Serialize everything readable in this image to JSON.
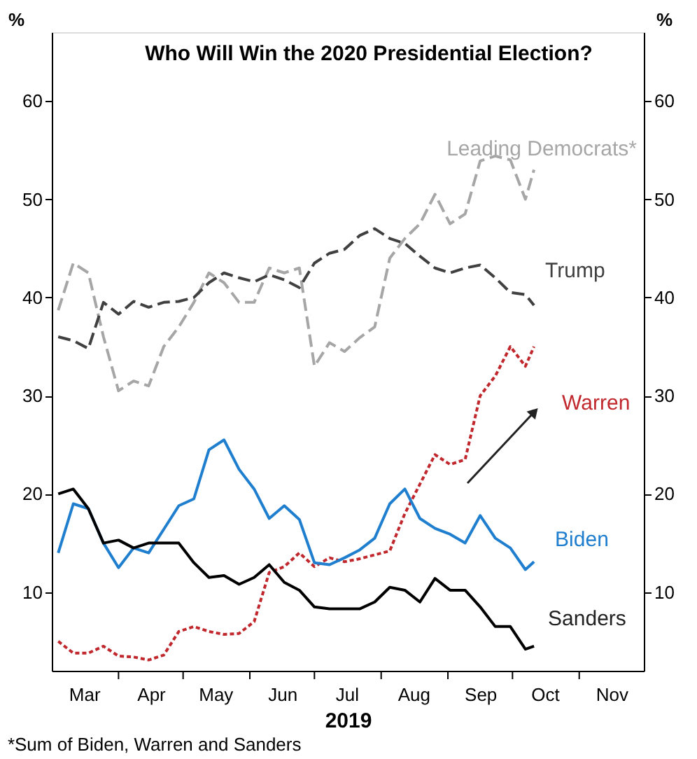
{
  "chart_data": {
    "type": "line",
    "title": "Who Will Win the 2020 Presidential Election?",
    "xlabel": "2019",
    "ylabel": "%",
    "y2label": "%",
    "annotations": [
      "*Sum of Biden, Warren and Sanders"
    ],
    "x": [
      "2019-03-04",
      "2019-03-11",
      "2019-03-18",
      "2019-03-25",
      "2019-04-01",
      "2019-04-08",
      "2019-04-15",
      "2019-04-22",
      "2019-04-29",
      "2019-05-06",
      "2019-05-13",
      "2019-05-20",
      "2019-05-27",
      "2019-06-03",
      "2019-06-10",
      "2019-06-17",
      "2019-06-24",
      "2019-07-01",
      "2019-07-08",
      "2019-07-15",
      "2019-07-22",
      "2019-07-29",
      "2019-08-05",
      "2019-08-12",
      "2019-08-19",
      "2019-08-26",
      "2019-09-02",
      "2019-09-09",
      "2019-09-16",
      "2019-09-23",
      "2019-09-30",
      "2019-10-07",
      "2019-10-11"
    ],
    "series": [
      {
        "name": "Leading Democrats*",
        "color": "#a6a6a6",
        "line_style": "dashed",
        "values": [
          38.7,
          43.5,
          42.5,
          36,
          30.5,
          31.5,
          31,
          35,
          37,
          39.5,
          42.5,
          41.5,
          39.5,
          39.5,
          43,
          42.5,
          43,
          33,
          35.4,
          34.5,
          35.9,
          37,
          44,
          46,
          47.5,
          50.5,
          47.5,
          48.5,
          53.9,
          54.4,
          54,
          50,
          53
        ]
      },
      {
        "name": "Trump",
        "color": "#404040",
        "line_style": "dashed",
        "values": [
          36,
          35.6,
          34.8,
          39.5,
          38.3,
          39.6,
          39,
          39.5,
          39.6,
          40,
          41.5,
          42.5,
          42,
          41.6,
          42.3,
          41.8,
          41,
          43.5,
          44.5,
          44.9,
          46.3,
          47,
          46,
          45.5,
          44.2,
          43,
          42.5,
          43,
          43.3,
          42,
          40.5,
          40.3,
          39.2
        ]
      },
      {
        "name": "Warren",
        "color": "#c0282d",
        "line_style": "dotted",
        "values": [
          5,
          3.8,
          3.8,
          4.5,
          3.5,
          3.4,
          3.1,
          3.6,
          6,
          6.5,
          6,
          5.7,
          5.8,
          7,
          12,
          12.6,
          14,
          12.6,
          13.5,
          13.1,
          13.4,
          13.8,
          14.2,
          18,
          21,
          24,
          23,
          23.5,
          30,
          32,
          35,
          33,
          35
        ]
      },
      {
        "name": "Biden",
        "color": "#1f7fce",
        "line_style": "solid",
        "values": [
          14,
          19,
          18.5,
          15,
          12.5,
          14.5,
          14,
          16.4,
          18.8,
          19.5,
          24.5,
          25.5,
          22.5,
          20.5,
          17.5,
          18.8,
          17.4,
          13,
          12.8,
          13.5,
          14.3,
          15.5,
          19,
          20.5,
          17.5,
          16.5,
          15.9,
          15,
          17.8,
          15.5,
          14.5,
          12.3,
          13.1
        ]
      },
      {
        "name": "Sanders",
        "color": "#000000",
        "line_style": "solid",
        "values": [
          20,
          20.5,
          18.5,
          15,
          15.3,
          14.5,
          15,
          15,
          15,
          13,
          11.5,
          11.7,
          10.8,
          11.5,
          12.8,
          11,
          10.2,
          8.5,
          8.3,
          8.3,
          8.3,
          9,
          10.5,
          10.2,
          9,
          11.4,
          10.2,
          10.2,
          8.5,
          6.5,
          6.5,
          4.2,
          4.5
        ]
      }
    ],
    "xlim": [
      "2019-03-01",
      "2019-12-01"
    ],
    "xticks": [
      {
        "value": "2019-04-01",
        "label": null
      },
      {
        "value": "2019-05-01",
        "label": null
      },
      {
        "value": "2019-06-01",
        "label": null
      },
      {
        "value": "2019-07-01",
        "label": null
      },
      {
        "value": "2019-08-01",
        "label": null
      },
      {
        "value": "2019-09-01",
        "label": null
      },
      {
        "value": "2019-10-01",
        "label": null
      },
      {
        "value": "2019-11-01",
        "label": null
      },
      {
        "value": "2019-03-16",
        "label": "Mar"
      },
      {
        "value": "2019-04-16",
        "label": "Apr"
      },
      {
        "value": "2019-05-16",
        "label": "May"
      },
      {
        "value": "2019-06-16",
        "label": "Jun"
      },
      {
        "value": "2019-07-16",
        "label": "Jul"
      },
      {
        "value": "2019-08-16",
        "label": "Aug"
      },
      {
        "value": "2019-09-16",
        "label": "Sep"
      },
      {
        "value": "2019-10-16",
        "label": "Oct"
      },
      {
        "value": "2019-11-16",
        "label": "Nov"
      }
    ],
    "ylim": [
      2,
      67
    ],
    "yticks": [
      10,
      20,
      30,
      40,
      50,
      60
    ],
    "y2lim": [
      2,
      67
    ],
    "y2ticks": [
      10,
      20,
      30,
      40,
      50,
      60
    ],
    "grid": false,
    "legend": false,
    "marker": "none"
  }
}
